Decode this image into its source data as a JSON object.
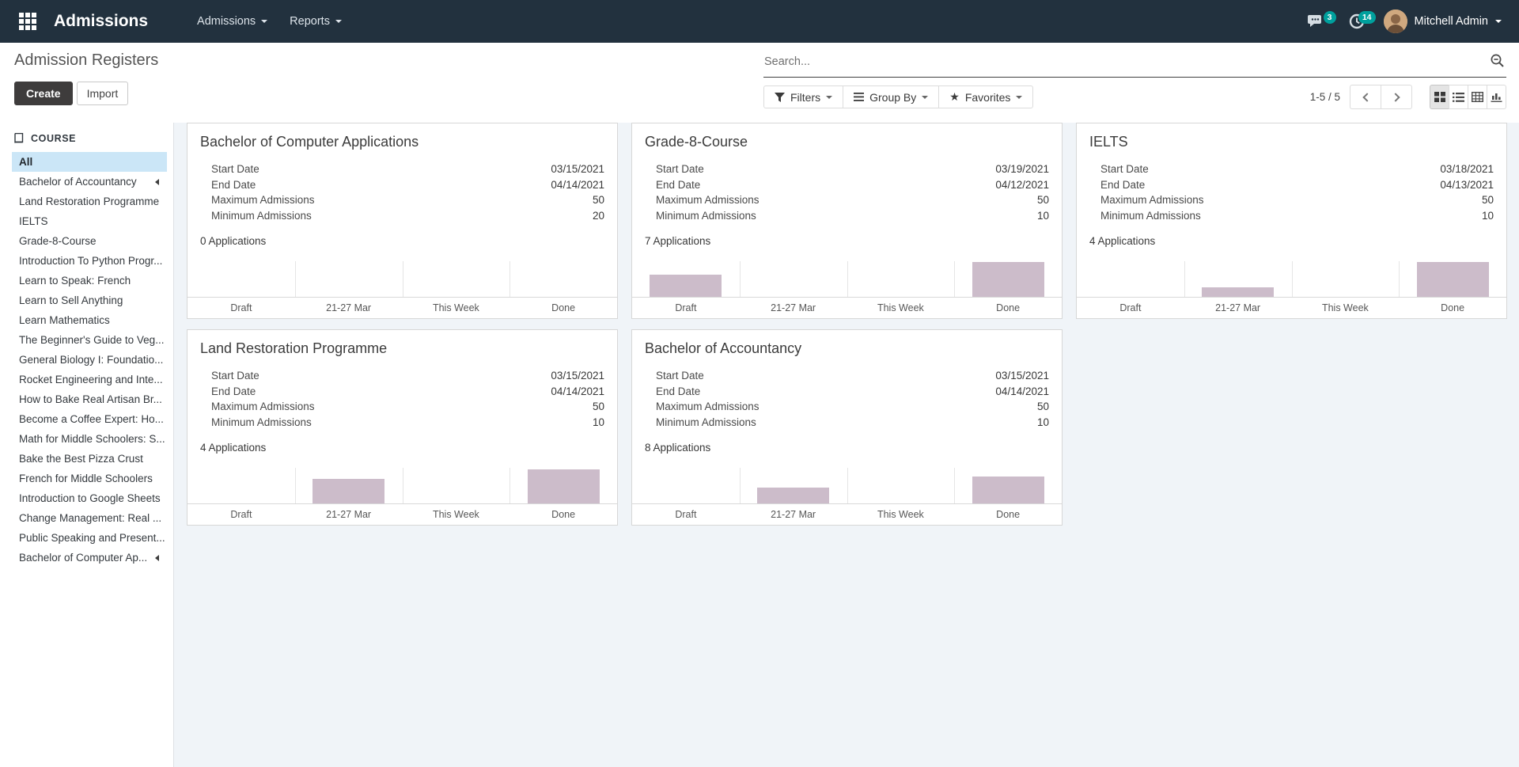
{
  "navbar": {
    "brand": "Admissions",
    "menus": [
      {
        "label": "Admissions"
      },
      {
        "label": "Reports"
      }
    ],
    "messages_badge": "3",
    "activities_badge": "14",
    "user_name": "Mitchell Admin"
  },
  "control_panel": {
    "title": "Admission Registers",
    "create_label": "Create",
    "import_label": "Import",
    "search_placeholder": "Search...",
    "filters_label": "Filters",
    "group_by_label": "Group By",
    "favorites_label": "Favorites",
    "pager": "1-5 / 5"
  },
  "sidebar": {
    "section_title": "COURSE",
    "items": [
      {
        "label": "All",
        "active": true,
        "has_children": false
      },
      {
        "label": "Bachelor of Accountancy",
        "active": false,
        "has_children": true
      },
      {
        "label": "Land Restoration Programme",
        "active": false,
        "has_children": false
      },
      {
        "label": "IELTS",
        "active": false,
        "has_children": false
      },
      {
        "label": "Grade-8-Course",
        "active": false,
        "has_children": false
      },
      {
        "label": "Introduction To Python Progr...",
        "active": false,
        "has_children": false
      },
      {
        "label": "Learn to Speak: French",
        "active": false,
        "has_children": false
      },
      {
        "label": "Learn to Sell Anything",
        "active": false,
        "has_children": false
      },
      {
        "label": "Learn Mathematics",
        "active": false,
        "has_children": false
      },
      {
        "label": "The Beginner's Guide to Veg...",
        "active": false,
        "has_children": false
      },
      {
        "label": "General Biology I: Foundatio...",
        "active": false,
        "has_children": false
      },
      {
        "label": "Rocket Engineering and Inte...",
        "active": false,
        "has_children": false
      },
      {
        "label": "How to Bake Real Artisan Br...",
        "active": false,
        "has_children": false
      },
      {
        "label": "Become a Coffee Expert: Ho...",
        "active": false,
        "has_children": false
      },
      {
        "label": "Math for Middle Schoolers: S...",
        "active": false,
        "has_children": false
      },
      {
        "label": "Bake the Best Pizza Crust",
        "active": false,
        "has_children": false
      },
      {
        "label": "French for Middle Schoolers",
        "active": false,
        "has_children": false
      },
      {
        "label": "Introduction to Google Sheets",
        "active": false,
        "has_children": false
      },
      {
        "label": "Change Management: Real ...",
        "active": false,
        "has_children": false
      },
      {
        "label": "Public Speaking and Present...",
        "active": false,
        "has_children": false
      },
      {
        "label": "Bachelor of Computer Ap...",
        "active": false,
        "has_children": true
      }
    ]
  },
  "chart_categories": [
    "Draft",
    "21-27 Mar",
    "This Week",
    "Done"
  ],
  "cards": [
    {
      "title": "Bachelor of Computer Applications",
      "fields": [
        {
          "label": "Start Date",
          "value": "03/15/2021"
        },
        {
          "label": "End Date",
          "value": "04/14/2021"
        },
        {
          "label": "Maximum Admissions",
          "value": "50"
        },
        {
          "label": "Minimum Admissions",
          "value": "20"
        }
      ],
      "applications": "0 Applications",
      "bar_heights_pct": [
        0,
        0,
        0,
        0
      ]
    },
    {
      "title": "Grade-8-Course",
      "fields": [
        {
          "label": "Start Date",
          "value": "03/19/2021"
        },
        {
          "label": "End Date",
          "value": "04/12/2021"
        },
        {
          "label": "Maximum Admissions",
          "value": "50"
        },
        {
          "label": "Minimum Admissions",
          "value": "10"
        }
      ],
      "applications": "7 Applications",
      "bar_heights_pct": [
        63,
        0,
        0,
        98
      ]
    },
    {
      "title": "IELTS",
      "fields": [
        {
          "label": "Start Date",
          "value": "03/18/2021"
        },
        {
          "label": "End Date",
          "value": "04/13/2021"
        },
        {
          "label": "Maximum Admissions",
          "value": "50"
        },
        {
          "label": "Minimum Admissions",
          "value": "10"
        }
      ],
      "applications": "4 Applications",
      "bar_heights_pct": [
        0,
        26,
        0,
        98
      ]
    },
    {
      "title": "Land Restoration Programme",
      "fields": [
        {
          "label": "Start Date",
          "value": "03/15/2021"
        },
        {
          "label": "End Date",
          "value": "04/14/2021"
        },
        {
          "label": "Maximum Admissions",
          "value": "50"
        },
        {
          "label": "Minimum Admissions",
          "value": "10"
        }
      ],
      "applications": "4 Applications",
      "bar_heights_pct": [
        0,
        70,
        0,
        96
      ]
    },
    {
      "title": "Bachelor of Accountancy",
      "fields": [
        {
          "label": "Start Date",
          "value": "03/15/2021"
        },
        {
          "label": "End Date",
          "value": "04/14/2021"
        },
        {
          "label": "Maximum Admissions",
          "value": "50"
        },
        {
          "label": "Minimum Admissions",
          "value": "10"
        }
      ],
      "applications": "8 Applications",
      "bar_heights_pct": [
        0,
        45,
        0,
        76
      ]
    }
  ],
  "chart_data": [
    {
      "type": "bar",
      "title": "Bachelor of Computer Applications applications sparkline",
      "categories": [
        "Draft",
        "21-27 Mar",
        "This Week",
        "Done"
      ],
      "values": [
        0,
        0,
        0,
        0
      ],
      "unit": "percent_of_plot_height",
      "xlabel": "",
      "ylabel": "",
      "grid": "vertical-only",
      "legend": "none"
    },
    {
      "type": "bar",
      "title": "Grade-8-Course applications sparkline",
      "categories": [
        "Draft",
        "21-27 Mar",
        "This Week",
        "Done"
      ],
      "values": [
        63,
        0,
        0,
        98
      ],
      "unit": "percent_of_plot_height",
      "xlabel": "",
      "ylabel": "",
      "grid": "vertical-only",
      "legend": "none"
    },
    {
      "type": "bar",
      "title": "IELTS applications sparkline",
      "categories": [
        "Draft",
        "21-27 Mar",
        "This Week",
        "Done"
      ],
      "values": [
        0,
        26,
        0,
        98
      ],
      "unit": "percent_of_plot_height",
      "xlabel": "",
      "ylabel": "",
      "grid": "vertical-only",
      "legend": "none"
    },
    {
      "type": "bar",
      "title": "Land Restoration Programme applications sparkline",
      "categories": [
        "Draft",
        "21-27 Mar",
        "This Week",
        "Done"
      ],
      "values": [
        0,
        70,
        0,
        96
      ],
      "unit": "percent_of_plot_height",
      "xlabel": "",
      "ylabel": "",
      "grid": "vertical-only",
      "legend": "none"
    },
    {
      "type": "bar",
      "title": "Bachelor of Accountancy applications sparkline",
      "categories": [
        "Draft",
        "21-27 Mar",
        "This Week",
        "Done"
      ],
      "values": [
        0,
        45,
        0,
        76
      ],
      "unit": "percent_of_plot_height",
      "xlabel": "",
      "ylabel": "",
      "grid": "vertical-only",
      "legend": "none"
    }
  ],
  "colors": {
    "navbar_bg": "#22313e",
    "accent_teal": "#00a09d",
    "bar_fill": "#ccbcca",
    "selected_filter_bg": "#cbe6f7",
    "kanban_bg": "#f0f4f8",
    "create_button_bg": "#3e3c3c"
  }
}
